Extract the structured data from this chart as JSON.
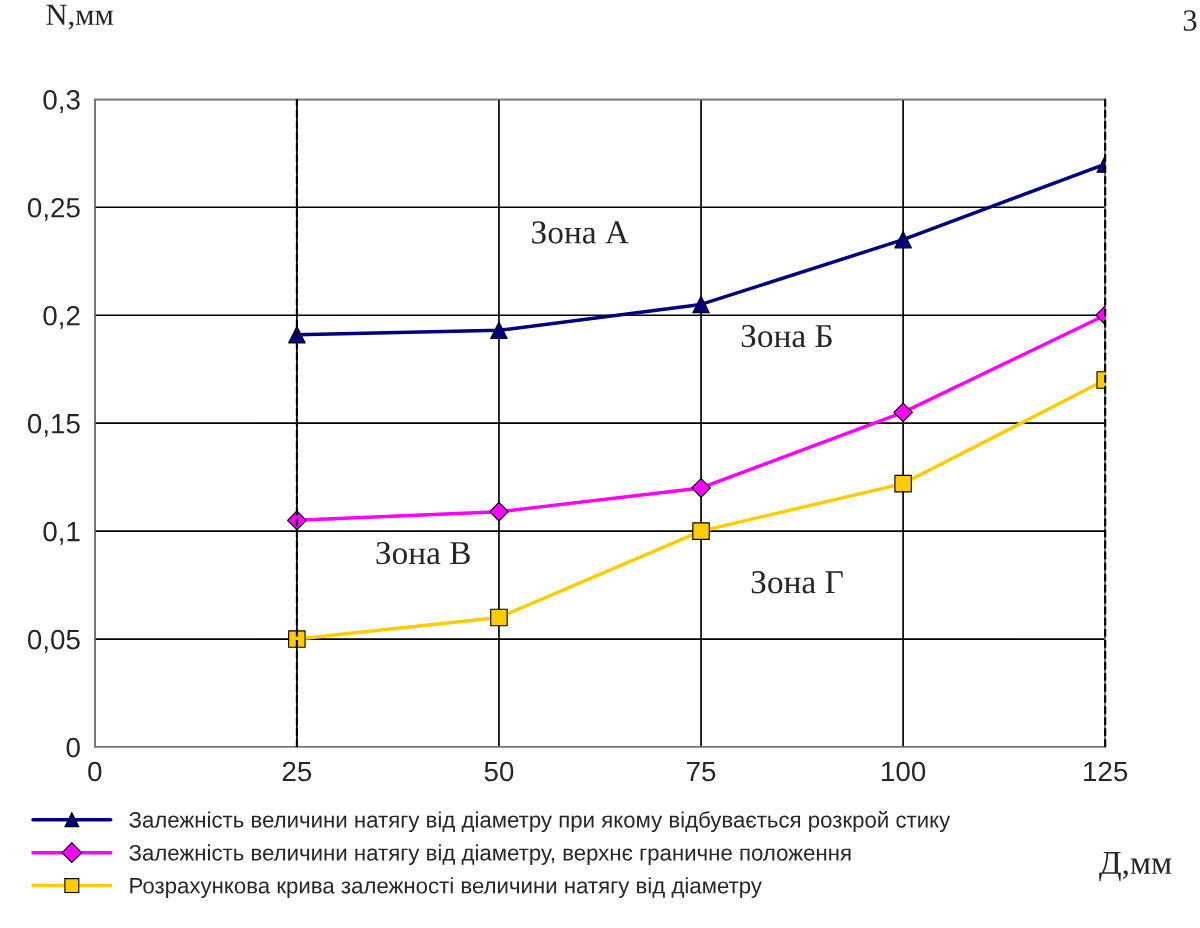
{
  "chart_data": {
    "type": "line",
    "x": [
      25,
      50,
      75,
      100,
      125
    ],
    "series": [
      {
        "name": "Залежність величини натягу від діаметру при якому відбувається розкрой стику",
        "color": "#000080",
        "marker": "triangle",
        "values": [
          0.191,
          0.193,
          0.205,
          0.235,
          0.27
        ]
      },
      {
        "name": "Залежність величини натягу від діаметру, верхнє граничне положення",
        "color": "#ff00ff",
        "marker": "diamond",
        "values": [
          0.105,
          0.109,
          0.12,
          0.155,
          0.2
        ]
      },
      {
        "name": "Розрахункова крива залежності величини натягу від діаметру",
        "color": "#ffcc00",
        "marker": "square",
        "values": [
          0.05,
          0.06,
          0.1,
          0.122,
          0.17
        ]
      }
    ],
    "xlabel": "Д,мм",
    "ylabel": "N,мм",
    "xlim": [
      0,
      125
    ],
    "xticks": [
      0,
      25,
      50,
      75,
      100,
      125
    ],
    "ylim": [
      0,
      0.3
    ],
    "yticks": [
      0,
      {
        "value": 0.05,
        "label": "0,05"
      },
      {
        "value": 0.1,
        "label": "0,1"
      },
      {
        "value": 0.15,
        "label": "0,15"
      },
      {
        "value": 0.2,
        "label": "0,2"
      },
      {
        "value": 0.25,
        "label": "0,25"
      },
      {
        "value": 0.3,
        "label": "0,3"
      }
    ],
    "grid": true,
    "legend": "bottom",
    "ref_lines": [
      {
        "axis": "x",
        "value": 25,
        "color": "#000000",
        "line_style": "dashed"
      },
      {
        "axis": "x",
        "value": 125,
        "color": "#000000",
        "line_style": "dashed"
      }
    ],
    "annotations": [
      "Зона А",
      "Зона Б",
      "Зона В",
      "Зона Г",
      "3"
    ]
  }
}
